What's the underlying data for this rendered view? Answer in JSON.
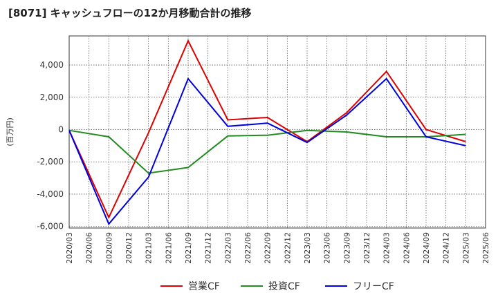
{
  "title": "[8071]  キャッシュフローの12か月移動合計の推移",
  "chart_data": {
    "type": "line",
    "title": "[8071]  キャッシュフローの12か月移動合計の推移",
    "xlabel": "",
    "ylabel": "(百万円)",
    "ylim": [
      -6000,
      6000
    ],
    "yticks": [
      4000,
      2000,
      0,
      -2000,
      -4000,
      -6000
    ],
    "ytick_labels": [
      "4,000",
      "2,000",
      "0",
      "-2,000",
      "-4,000",
      "-6,000"
    ],
    "x_ticks": [
      "2020/03",
      "2020/06",
      "2020/09",
      "2020/12",
      "2021/03",
      "2021/06",
      "2021/09",
      "2021/12",
      "2022/03",
      "2022/06",
      "2022/09",
      "2022/12",
      "2023/03",
      "2023/06",
      "2023/09",
      "2023/12",
      "2024/03",
      "2024/06",
      "2024/09",
      "2024/12",
      "2025/03",
      "2025/06"
    ],
    "x_points": [
      "2020/03",
      "2020/09",
      "2021/03",
      "2021/09",
      "2022/03",
      "2022/09",
      "2023/03",
      "2023/09",
      "2024/03",
      "2024/09",
      "2025/03"
    ],
    "grid": true,
    "legend": "bottom",
    "series": [
      {
        "name": "営業CF",
        "color": "#dd0000",
        "values": [
          -50,
          -5450,
          -200,
          5500,
          600,
          750,
          -750,
          1050,
          3600,
          0,
          -750
        ]
      },
      {
        "name": "投資CF",
        "color": "#228b22",
        "values": [
          -50,
          -450,
          -2700,
          -2350,
          -400,
          -350,
          -50,
          -150,
          -450,
          -450,
          -300
        ]
      },
      {
        "name": "フリーCF",
        "color": "#0000dd",
        "values": [
          -50,
          -5850,
          -2950,
          3150,
          200,
          400,
          -800,
          900,
          3150,
          -450,
          -1000
        ]
      }
    ]
  }
}
